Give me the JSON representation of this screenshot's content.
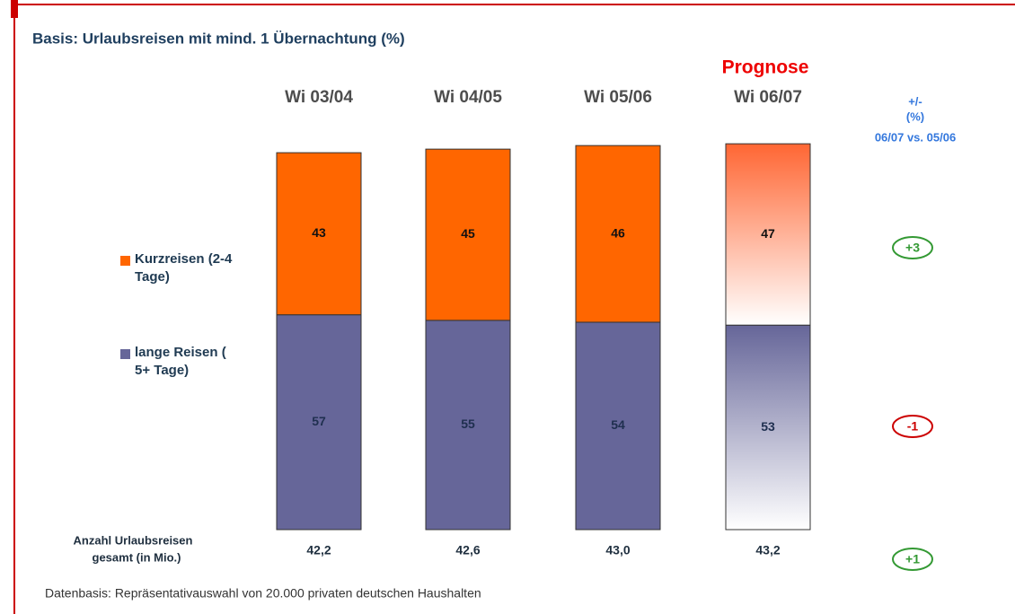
{
  "chart_data": {
    "type": "stacked_bar",
    "title": "Basis: Urlaubsreisen mit mind. 1 Übernachtung (%)",
    "forecast": "Prognose",
    "categories": [
      "Wi 03/04",
      "Wi 04/05",
      "Wi 05/06",
      "Wi 06/07"
    ],
    "series": [
      {
        "name": "lange Reisen ( 5+ Tage)",
        "color": "#666699",
        "values": [
          57,
          55,
          54,
          53
        ]
      },
      {
        "name": "Kurzreisen (2-4 Tage)",
        "color": "#ff6600",
        "values": [
          43,
          45,
          46,
          47
        ]
      }
    ],
    "totals": {
      "label": [
        "Anzahl Urlaubsreisen",
        "gesamt (in Mio.)"
      ],
      "values": [
        42.2,
        42.6,
        43.0,
        43.2
      ],
      "value_labels": [
        "42,2",
        "42,6",
        "43,0",
        "43,2"
      ]
    },
    "changes": {
      "header": [
        "+/-",
        "(%)",
        "06/07 vs. 05/06"
      ],
      "values": [
        3,
        -1,
        1
      ],
      "value_labels": [
        "+3",
        "-1",
        "+1"
      ],
      "colors": [
        "#339933",
        "#cc0000",
        "#339933"
      ]
    },
    "footnote": "Datenbasis: Repräsentativauswahl von 20.000 privaten deutschen Haushalten"
  }
}
